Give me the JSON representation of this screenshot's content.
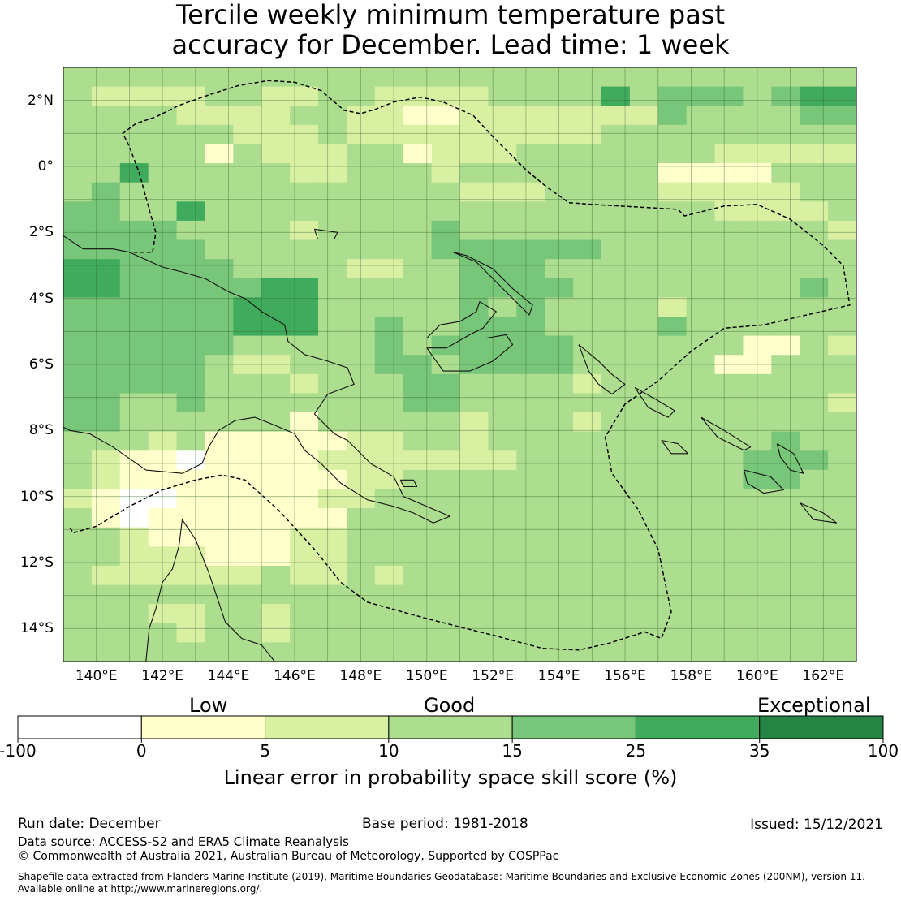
{
  "title": {
    "line1": "Tercile weekly minimum temperature past",
    "line2": "accuracy for December. Lead time: 1 week"
  },
  "map": {
    "lat_range": [
      -15,
      3
    ],
    "lon_range": [
      139,
      163
    ],
    "grid_step_deg": 1,
    "lat_labels": [
      {
        "lat": 2,
        "text": "2°N"
      },
      {
        "lat": 0,
        "text": "0°"
      },
      {
        "lat": -2,
        "text": "2°S"
      },
      {
        "lat": -4,
        "text": "4°S"
      },
      {
        "lat": -6,
        "text": "6°S"
      },
      {
        "lat": -8,
        "text": "8°S"
      },
      {
        "lat": -10,
        "text": "10°S"
      },
      {
        "lat": -12,
        "text": "12°S"
      },
      {
        "lat": -14,
        "text": "14°S"
      }
    ],
    "lon_labels": [
      {
        "lon": 140,
        "text": "140°E"
      },
      {
        "lon": 142,
        "text": "142°E"
      },
      {
        "lon": 144,
        "text": "144°E"
      },
      {
        "lon": 146,
        "text": "146°E"
      },
      {
        "lon": 148,
        "text": "148°E"
      },
      {
        "lon": 150,
        "text": "150°E"
      },
      {
        "lon": 152,
        "text": "152°E"
      },
      {
        "lon": 154,
        "text": "154°E"
      },
      {
        "lon": 156,
        "text": "156°E"
      },
      {
        "lon": 158,
        "text": "158°E"
      },
      {
        "lon": 160,
        "text": "160°E"
      },
      {
        "lon": 162,
        "text": "162°E"
      }
    ],
    "skill_grid": {
      "description": "LEPS skill score class per ~0.83 deg cell, rows north to south, columns west to east; class index into colorbar.colors",
      "rows": [
        "3333333333333333333333333333",
        "3222233223322223333534443455",
        "3333222233221122222224333344",
        "3333332223222222222333333333",
        "3333313222331222333333322222",
        "3353333322333233333331111333",
        "3433333333333322233332222233",
        "4433533333333333333333322223",
        "4444333323333433333333333332",
        "4444433333333444444333333333",
        "5544443333223344433333333333",
        "5544444553333344443333333343",
        "4444445553333343433332333333",
        "4444445553343344433334333333",
        "4444443333343444443333331132",
        "4444432233344344443333311333",
        "4444433323334433332333333333",
        "4433433333334433333333333332",
        "4433333313333323332333333333",
        "3332311111223323333333333433",
        "3211011112222222333333334443",
        "3211111111223333333333334433",
        "2100111112233333333333333333",
        "3101111111333333333333333333",
        "3321111122333333333333333333",
        "3322211122333333333333333333",
        "3222222322323333333333333333",
        "3333333333333333333333333333",
        "3332233233333333333333333333",
        "3333233233333333333333333333",
        "3333333333333333333333333333"
      ]
    },
    "eez_boundary": [
      [
        139.2,
        -10.95
      ],
      [
        139.3,
        -11.1
      ],
      [
        140.0,
        -10.9
      ],
      [
        141.0,
        -10.3
      ],
      [
        142.0,
        -9.8
      ],
      [
        143.0,
        -9.5
      ],
      [
        143.8,
        -9.35
      ],
      [
        144.5,
        -9.5
      ],
      [
        145.5,
        -10.4
      ],
      [
        146.6,
        -11.6
      ],
      [
        147.4,
        -12.6
      ],
      [
        148.2,
        -13.2
      ],
      [
        150.0,
        -13.7
      ],
      [
        152.0,
        -14.2
      ],
      [
        153.5,
        -14.6
      ],
      [
        154.6,
        -14.65
      ],
      [
        155.5,
        -14.45
      ],
      [
        156.6,
        -14.1
      ],
      [
        157.1,
        -14.3
      ],
      [
        157.4,
        -13.5
      ],
      [
        157.0,
        -11.6
      ],
      [
        156.4,
        -10.4
      ],
      [
        155.6,
        -9.3
      ],
      [
        155.4,
        -8.2
      ],
      [
        156.0,
        -7.2
      ],
      [
        157.0,
        -6.5
      ],
      [
        158.0,
        -5.6
      ],
      [
        159.0,
        -4.9
      ],
      [
        160.2,
        -4.8
      ],
      [
        161.5,
        -4.5
      ],
      [
        162.8,
        -4.2
      ],
      [
        162.6,
        -3.0
      ],
      [
        162.0,
        -2.4
      ],
      [
        161.0,
        -1.6
      ],
      [
        160.0,
        -1.15
      ],
      [
        159.0,
        -1.2
      ],
      [
        158.0,
        -1.45
      ],
      [
        157.8,
        -1.5
      ],
      [
        157.6,
        -1.3
      ],
      [
        155.0,
        -1.15
      ],
      [
        154.3,
        -1.1
      ],
      [
        153.6,
        -0.6
      ],
      [
        153.0,
        -0.1
      ],
      [
        152.0,
        0.9
      ],
      [
        151.4,
        1.55
      ],
      [
        150.5,
        1.95
      ],
      [
        149.8,
        2.1
      ],
      [
        149.0,
        1.95
      ],
      [
        148.5,
        1.75
      ],
      [
        148.0,
        1.6
      ],
      [
        147.5,
        1.7
      ],
      [
        146.8,
        2.3
      ],
      [
        146.0,
        2.55
      ],
      [
        145.2,
        2.6
      ],
      [
        144.3,
        2.45
      ],
      [
        143.5,
        2.2
      ],
      [
        142.5,
        1.85
      ],
      [
        141.8,
        1.5
      ],
      [
        141.2,
        1.3
      ],
      [
        140.8,
        1.0
      ],
      [
        141.0,
        0.6
      ],
      [
        141.3,
        -0.2
      ],
      [
        141.6,
        -1.3
      ],
      [
        141.8,
        -2.0
      ],
      [
        141.7,
        -2.6
      ],
      [
        141.0,
        -2.6
      ]
    ],
    "coastlines": [
      [
        [
          139.0,
          -2.1
        ],
        [
          139.6,
          -2.5
        ],
        [
          140.5,
          -2.5
        ],
        [
          141.0,
          -2.6
        ],
        [
          142.0,
          -3.05
        ],
        [
          142.6,
          -3.2
        ],
        [
          143.3,
          -3.4
        ],
        [
          144.0,
          -3.8
        ],
        [
          144.5,
          -4.0
        ],
        [
          145.0,
          -4.4
        ],
        [
          145.7,
          -4.8
        ],
        [
          145.8,
          -5.3
        ],
        [
          146.3,
          -5.7
        ],
        [
          147.0,
          -5.9
        ],
        [
          147.6,
          -6.1
        ],
        [
          147.8,
          -6.6
        ],
        [
          147.0,
          -6.9
        ],
        [
          146.6,
          -7.5
        ],
        [
          147.2,
          -8.1
        ],
        [
          147.6,
          -8.3
        ],
        [
          148.3,
          -9.0
        ],
        [
          149.0,
          -9.4
        ],
        [
          149.3,
          -10.0
        ],
        [
          150.0,
          -10.3
        ],
        [
          150.7,
          -10.6
        ],
        [
          150.2,
          -10.8
        ],
        [
          149.6,
          -10.5
        ],
        [
          149.0,
          -10.3
        ],
        [
          148.2,
          -10.1
        ],
        [
          147.4,
          -9.6
        ],
        [
          146.8,
          -9.0
        ],
        [
          146.3,
          -8.6
        ],
        [
          146.0,
          -8.1
        ],
        [
          145.3,
          -7.8
        ],
        [
          144.8,
          -7.6
        ],
        [
          144.2,
          -7.7
        ],
        [
          143.7,
          -8.0
        ],
        [
          143.4,
          -8.5
        ],
        [
          143.2,
          -9.0
        ],
        [
          142.6,
          -9.3
        ],
        [
          141.5,
          -9.2
        ],
        [
          140.5,
          -8.5
        ],
        [
          139.8,
          -8.1
        ],
        [
          139.2,
          -8.0
        ],
        [
          139.0,
          -7.9
        ]
      ],
      [
        [
          142.6,
          -10.7
        ],
        [
          142.5,
          -11.5
        ],
        [
          142.3,
          -12.2
        ],
        [
          142.0,
          -12.6
        ],
        [
          141.8,
          -13.4
        ],
        [
          141.6,
          -14.0
        ],
        [
          141.5,
          -15.0
        ]
      ],
      [
        [
          142.6,
          -10.7
        ],
        [
          143.0,
          -11.3
        ],
        [
          143.4,
          -12.3
        ],
        [
          143.6,
          -12.9
        ],
        [
          143.9,
          -13.8
        ],
        [
          144.4,
          -14.3
        ],
        [
          145.0,
          -14.5
        ],
        [
          145.4,
          -15.0
        ]
      ],
      [
        [
          150.0,
          -5.5
        ],
        [
          150.6,
          -5.5
        ],
        [
          151.3,
          -5.1
        ],
        [
          151.7,
          -4.9
        ],
        [
          152.1,
          -4.4
        ],
        [
          151.6,
          -4.1
        ],
        [
          151.5,
          -4.4
        ],
        [
          151.0,
          -4.7
        ],
        [
          150.4,
          -4.8
        ],
        [
          150.0,
          -5.2
        ]
      ],
      [
        [
          150.0,
          -5.5
        ],
        [
          150.5,
          -6.2
        ],
        [
          151.3,
          -6.2
        ],
        [
          152.0,
          -5.9
        ],
        [
          152.6,
          -5.4
        ],
        [
          152.4,
          -5.1
        ],
        [
          151.8,
          -5.2
        ]
      ],
      [
        [
          150.8,
          -2.6
        ],
        [
          151.5,
          -2.9
        ],
        [
          152.2,
          -3.6
        ],
        [
          152.7,
          -4.1
        ],
        [
          153.1,
          -4.5
        ],
        [
          153.2,
          -4.2
        ],
        [
          152.6,
          -3.7
        ],
        [
          152.0,
          -3.1
        ],
        [
          151.2,
          -2.7
        ],
        [
          150.8,
          -2.6
        ]
      ],
      [
        [
          154.6,
          -5.4
        ],
        [
          155.2,
          -5.9
        ],
        [
          155.6,
          -6.3
        ],
        [
          156.0,
          -6.6
        ],
        [
          155.6,
          -6.9
        ],
        [
          155.2,
          -6.6
        ],
        [
          154.9,
          -6.2
        ],
        [
          154.6,
          -5.4
        ]
      ],
      [
        [
          156.3,
          -6.7
        ],
        [
          157.0,
          -7.1
        ],
        [
          157.5,
          -7.4
        ],
        [
          157.3,
          -7.6
        ],
        [
          156.7,
          -7.3
        ],
        [
          156.3,
          -6.7
        ]
      ],
      [
        [
          158.3,
          -7.6
        ],
        [
          159.0,
          -8.0
        ],
        [
          159.8,
          -8.5
        ],
        [
          159.6,
          -8.6
        ],
        [
          158.8,
          -8.2
        ],
        [
          158.3,
          -7.6
        ]
      ],
      [
        [
          159.6,
          -9.2
        ],
        [
          160.4,
          -9.4
        ],
        [
          160.8,
          -9.8
        ],
        [
          160.2,
          -9.9
        ],
        [
          159.7,
          -9.6
        ],
        [
          159.6,
          -9.2
        ]
      ],
      [
        [
          160.6,
          -8.4
        ],
        [
          161.1,
          -8.7
        ],
        [
          161.4,
          -9.3
        ],
        [
          161.0,
          -9.2
        ],
        [
          160.7,
          -8.8
        ],
        [
          160.6,
          -8.4
        ]
      ],
      [
        [
          161.3,
          -10.2
        ],
        [
          162.0,
          -10.5
        ],
        [
          162.4,
          -10.8
        ],
        [
          161.7,
          -10.7
        ],
        [
          161.3,
          -10.2
        ]
      ],
      [
        [
          157.1,
          -8.3
        ],
        [
          157.6,
          -8.4
        ],
        [
          157.9,
          -8.7
        ],
        [
          157.4,
          -8.7
        ],
        [
          157.1,
          -8.3
        ]
      ],
      [
        [
          146.6,
          -1.9
        ],
        [
          147.3,
          -2.0
        ],
        [
          147.2,
          -2.2
        ],
        [
          146.7,
          -2.2
        ],
        [
          146.6,
          -1.9
        ]
      ],
      [
        [
          149.2,
          -9.5
        ],
        [
          149.6,
          -9.5
        ],
        [
          149.7,
          -9.7
        ],
        [
          149.3,
          -9.7
        ],
        [
          149.2,
          -9.5
        ]
      ]
    ]
  },
  "colorbar": {
    "boundaries": [
      -100,
      0,
      5,
      10,
      15,
      25,
      35,
      100
    ],
    "tick_labels": [
      "-100",
      "0",
      "5",
      "10",
      "15",
      "25",
      "35",
      "100"
    ],
    "colors": [
      "#ffffff",
      "#ffffcc",
      "#d9f0a3",
      "#addd8e",
      "#78c679",
      "#41ab5d",
      "#238443"
    ],
    "categories": [
      "Low",
      "Good",
      "Exceptional"
    ],
    "label": "Linear error in probability space skill score (%)"
  },
  "footer": {
    "run_date": "Run date: December",
    "base_period": "Base period: 1981-2018",
    "issued": "Issued: 15/12/2021",
    "data_source": "Data source: ACCESS-S2 and ERA5 Climate Reanalysis",
    "copyright": "© Commonwealth of Australia 2021, Australian Bureau of Meteorology, Supported by COSPPac",
    "shapefile_line1": "Shapefile data extracted from Flanders Marine Institute (2019), Maritime Boundaries Geodatabase: Maritime Boundaries and Exclusive Economic Zones (200NM), version 11.",
    "shapefile_line2": "Available online at http://www.marineregions.org/."
  }
}
